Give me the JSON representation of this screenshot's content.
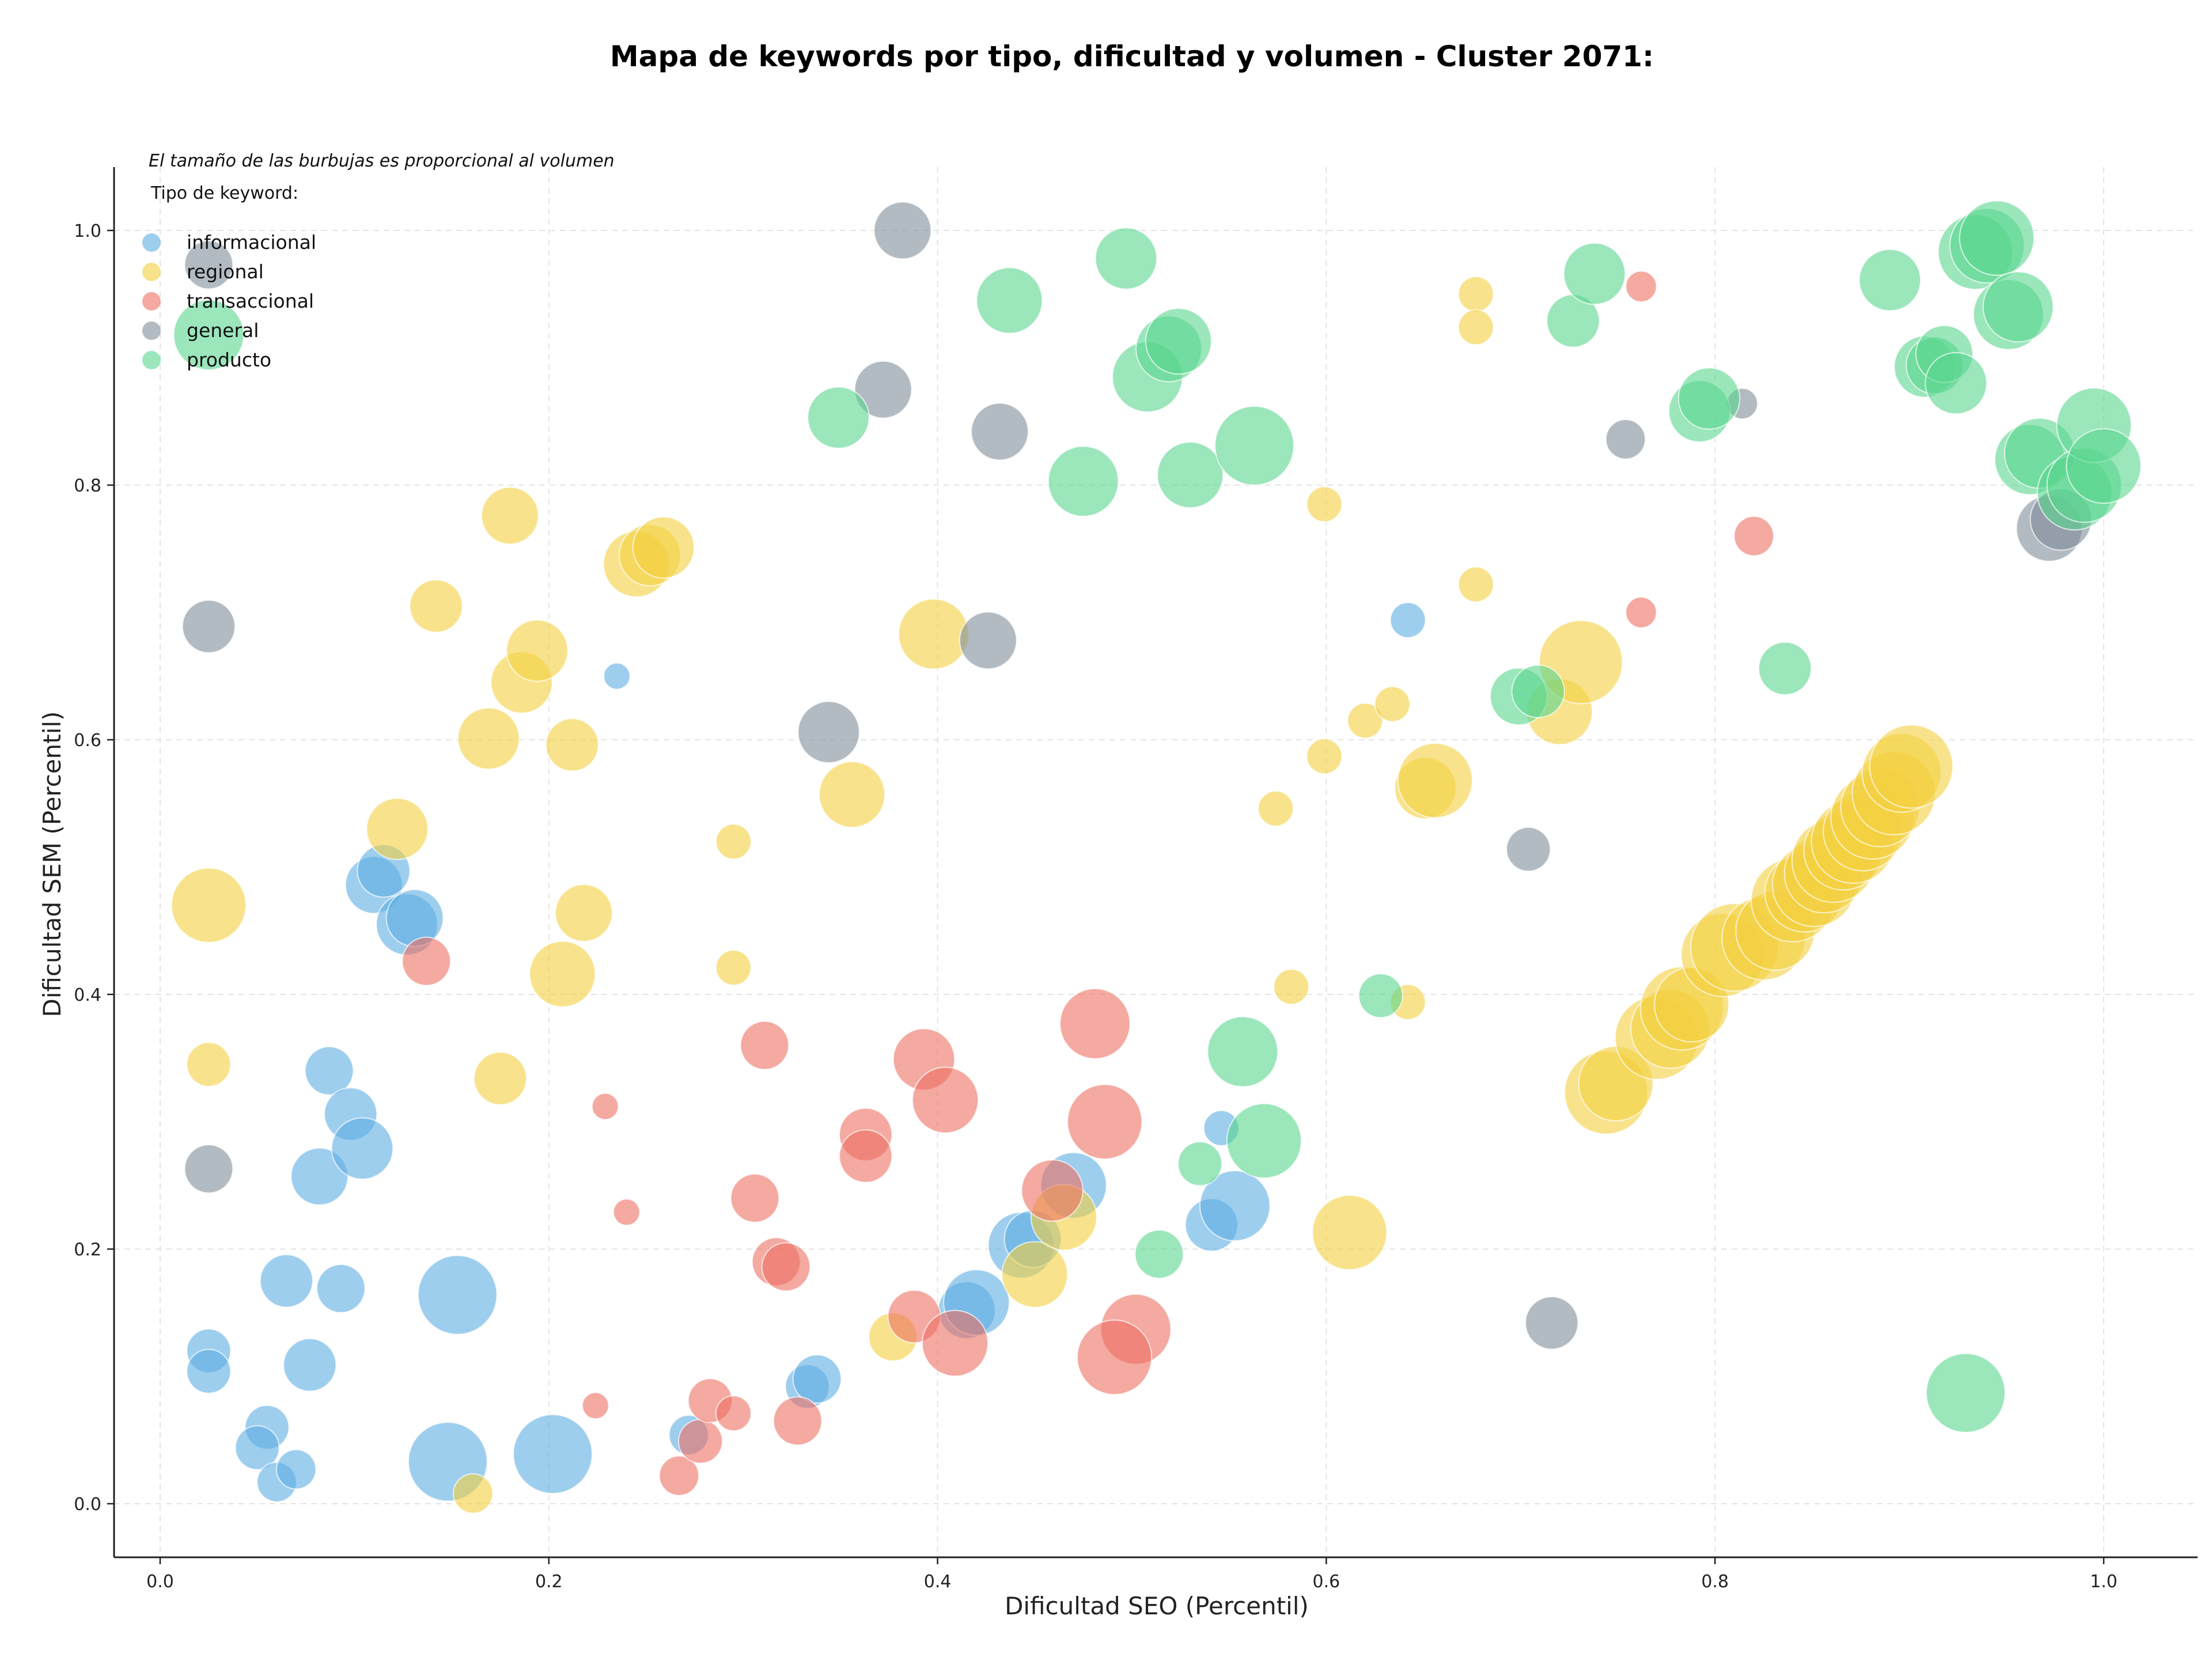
{
  "chart_data": {
    "type": "scatter",
    "title": "Mapa de keywords por tipo, dificultad y volumen - Cluster 2071:",
    "xlabel": "Dificultad SEO (Percentil)",
    "ylabel": "Dificultad SEM (Percentil)",
    "xlim": [
      -0.04,
      1.05
    ],
    "ylim": [
      -0.04,
      1.05
    ],
    "xticks": [
      0.0,
      0.2,
      0.4,
      0.6,
      0.8,
      1.0
    ],
    "yticks": [
      0.0,
      0.2,
      0.4,
      0.6,
      0.8,
      1.0
    ],
    "xtick_labels": [
      "0.0",
      "0.2",
      "0.4",
      "0.6",
      "0.8",
      "1.0"
    ],
    "ytick_labels": [
      "0.0",
      "0.2",
      "0.4",
      "0.6",
      "0.8",
      "1.0"
    ],
    "grid": true,
    "note": "El tamaño de las burbujas es proporcional al volumen",
    "legend_title": "Tipo de keyword:",
    "legend_position": "top-left",
    "series": [
      {
        "name": "informacional",
        "color": "#5DADE2",
        "points": [
          [
            0.025,
            0.12,
            1
          ],
          [
            0.025,
            0.104,
            1
          ],
          [
            0.055,
            0.06,
            1
          ],
          [
            0.05,
            0.044,
            1
          ],
          [
            0.06,
            0.017,
            0.9
          ],
          [
            0.07,
            0.027,
            0.9
          ],
          [
            0.065,
            0.175,
            1.2
          ],
          [
            0.077,
            0.109,
            1.2
          ],
          [
            0.093,
            0.169,
            1.1
          ],
          [
            0.082,
            0.257,
            1.3
          ],
          [
            0.087,
            0.34,
            1.1
          ],
          [
            0.098,
            0.306,
            1.2
          ],
          [
            0.104,
            0.279,
            1.4
          ],
          [
            0.11,
            0.486,
            1.3
          ],
          [
            0.115,
            0.497,
            1.2
          ],
          [
            0.127,
            0.455,
            1.4
          ],
          [
            0.131,
            0.46,
            1.3
          ],
          [
            0.153,
            0.164,
            1.8
          ],
          [
            0.148,
            0.033,
            1.8
          ],
          [
            0.202,
            0.039,
            1.8
          ],
          [
            0.235,
            0.65,
            0.6
          ],
          [
            0.272,
            0.054,
            0.9
          ],
          [
            0.333,
            0.092,
            1.0
          ],
          [
            0.338,
            0.098,
            1.1
          ],
          [
            0.415,
            0.152,
            1.3
          ],
          [
            0.42,
            0.158,
            1.5
          ],
          [
            0.443,
            0.203,
            1.5
          ],
          [
            0.449,
            0.208,
            1.3
          ],
          [
            0.47,
            0.25,
            1.5
          ],
          [
            0.541,
            0.219,
            1.2
          ],
          [
            0.546,
            0.295,
            0.8
          ],
          [
            0.553,
            0.234,
            1.6
          ],
          [
            0.642,
            0.694,
            0.8
          ]
        ]
      },
      {
        "name": "regional",
        "color": "#F4D03F",
        "points": [
          [
            0.025,
            0.47,
            1.7
          ],
          [
            0.025,
            0.345,
            1.0
          ],
          [
            0.122,
            0.53,
            1.4
          ],
          [
            0.142,
            0.705,
            1.2
          ],
          [
            0.169,
            0.601,
            1.4
          ],
          [
            0.175,
            0.334,
            1.2
          ],
          [
            0.18,
            0.776,
            1.3
          ],
          [
            0.186,
            0.645,
            1.4
          ],
          [
            0.194,
            0.67,
            1.4
          ],
          [
            0.207,
            0.416,
            1.5
          ],
          [
            0.212,
            0.596,
            1.2
          ],
          [
            0.218,
            0.464,
            1.3
          ],
          [
            0.245,
            0.738,
            1.5
          ],
          [
            0.252,
            0.745,
            1.4
          ],
          [
            0.259,
            0.751,
            1.4
          ],
          [
            0.161,
            0.008,
            0.9
          ],
          [
            0.295,
            0.52,
            0.8
          ],
          [
            0.295,
            0.421,
            0.8
          ],
          [
            0.356,
            0.557,
            1.5
          ],
          [
            0.377,
            0.131,
            1.1
          ],
          [
            0.398,
            0.683,
            1.6
          ],
          [
            0.45,
            0.18,
            1.5
          ],
          [
            0.465,
            0.225,
            1.5
          ],
          [
            0.582,
            0.406,
            0.8
          ],
          [
            0.574,
            0.546,
            0.8
          ],
          [
            0.599,
            0.785,
            0.8
          ],
          [
            0.599,
            0.587,
            0.8
          ],
          [
            0.612,
            0.213,
            1.7
          ],
          [
            0.62,
            0.615,
            0.8
          ],
          [
            0.634,
            0.628,
            0.8
          ],
          [
            0.642,
            0.394,
            0.8
          ],
          [
            0.651,
            0.562,
            1.4
          ],
          [
            0.656,
            0.568,
            1.7
          ],
          [
            0.677,
            0.95,
            0.8
          ],
          [
            0.677,
            0.924,
            0.8
          ],
          [
            0.677,
            0.722,
            0.8
          ],
          [
            0.72,
            0.622,
            1.5
          ],
          [
            0.731,
            0.661,
            1.9
          ],
          [
            0.744,
            0.323,
            1.9
          ],
          [
            0.749,
            0.33,
            1.7
          ],
          [
            0.77,
            0.366,
            1.9
          ],
          [
            0.777,
            0.373,
            1.8
          ],
          [
            0.783,
            0.389,
            1.9
          ],
          [
            0.788,
            0.392,
            1.7
          ],
          [
            0.804,
            0.431,
            1.9
          ],
          [
            0.81,
            0.437,
            2.0
          ],
          [
            0.825,
            0.444,
            1.9
          ],
          [
            0.831,
            0.45,
            1.8
          ],
          [
            0.84,
            0.474,
            1.9
          ],
          [
            0.846,
            0.48,
            1.8
          ],
          [
            0.851,
            0.486,
            1.9
          ],
          [
            0.856,
            0.495,
            1.8
          ],
          [
            0.861,
            0.505,
            1.9
          ],
          [
            0.866,
            0.513,
            1.8
          ],
          [
            0.871,
            0.52,
            1.9
          ],
          [
            0.876,
            0.528,
            1.8
          ],
          [
            0.881,
            0.539,
            1.9
          ],
          [
            0.885,
            0.547,
            1.8
          ],
          [
            0.892,
            0.558,
            1.9
          ],
          [
            0.896,
            0.574,
            1.8
          ],
          [
            0.901,
            0.579,
            1.9
          ]
        ]
      },
      {
        "name": "transaccional",
        "color": "#EC7063",
        "points": [
          [
            0.137,
            0.426,
            1.1
          ],
          [
            0.229,
            0.312,
            0.6
          ],
          [
            0.224,
            0.077,
            0.6
          ],
          [
            0.24,
            0.229,
            0.6
          ],
          [
            0.267,
            0.022,
            0.9
          ],
          [
            0.278,
            0.049,
            1.0
          ],
          [
            0.283,
            0.081,
            1.0
          ],
          [
            0.295,
            0.071,
            0.8
          ],
          [
            0.306,
            0.24,
            1.1
          ],
          [
            0.311,
            0.36,
            1.1
          ],
          [
            0.317,
            0.19,
            1.1
          ],
          [
            0.322,
            0.186,
            1.1
          ],
          [
            0.328,
            0.065,
            1.1
          ],
          [
            0.363,
            0.29,
            1.2
          ],
          [
            0.363,
            0.273,
            1.2
          ],
          [
            0.388,
            0.147,
            1.2
          ],
          [
            0.393,
            0.349,
            1.4
          ],
          [
            0.404,
            0.317,
            1.5
          ],
          [
            0.409,
            0.126,
            1.5
          ],
          [
            0.459,
            0.246,
            1.4
          ],
          [
            0.481,
            0.377,
            1.6
          ],
          [
            0.486,
            0.3,
            1.7
          ],
          [
            0.502,
            0.137,
            1.6
          ],
          [
            0.491,
            0.115,
            1.7
          ],
          [
            0.762,
            0.956,
            0.7
          ],
          [
            0.762,
            0.7,
            0.7
          ],
          [
            0.82,
            0.76,
            0.9
          ]
        ]
      },
      {
        "name": "general",
        "color": "#7F8C9A",
        "points": [
          [
            0.025,
            0.973,
            1.1
          ],
          [
            0.025,
            0.689,
            1.2
          ],
          [
            0.025,
            0.263,
            1.1
          ],
          [
            0.344,
            0.606,
            1.4
          ],
          [
            0.372,
            0.875,
            1.3
          ],
          [
            0.382,
            1.0,
            1.3
          ],
          [
            0.426,
            0.678,
            1.3
          ],
          [
            0.432,
            0.842,
            1.3
          ],
          [
            0.704,
            0.514,
            1.0
          ],
          [
            0.716,
            0.142,
            1.2
          ],
          [
            0.754,
            0.836,
            0.9
          ],
          [
            0.814,
            0.864,
            0.7
          ],
          [
            0.972,
            0.766,
            1.5
          ],
          [
            0.978,
            0.773,
            1.4
          ]
        ]
      },
      {
        "name": "producto",
        "color": "#58D68D",
        "points": [
          [
            0.025,
            0.918,
            1.6
          ],
          [
            0.349,
            0.853,
            1.4
          ],
          [
            0.437,
            0.945,
            1.5
          ],
          [
            0.475,
            0.803,
            1.6
          ],
          [
            0.497,
            0.978,
            1.4
          ],
          [
            0.508,
            0.885,
            1.6
          ],
          [
            0.519,
            0.907,
            1.5
          ],
          [
            0.524,
            0.913,
            1.5
          ],
          [
            0.53,
            0.808,
            1.5
          ],
          [
            0.514,
            0.196,
            1.1
          ],
          [
            0.535,
            0.267,
            1.0
          ],
          [
            0.557,
            0.355,
            1.6
          ],
          [
            0.563,
            0.831,
            1.8
          ],
          [
            0.568,
            0.285,
            1.7
          ],
          [
            0.628,
            0.399,
            1.0
          ],
          [
            0.699,
            0.634,
            1.3
          ],
          [
            0.709,
            0.638,
            1.2
          ],
          [
            0.727,
            0.929,
            1.2
          ],
          [
            0.738,
            0.966,
            1.4
          ],
          [
            0.792,
            0.858,
            1.4
          ],
          [
            0.797,
            0.868,
            1.4
          ],
          [
            0.836,
            0.656,
            1.2
          ],
          [
            0.89,
            0.961,
            1.4
          ],
          [
            0.908,
            0.893,
            1.4
          ],
          [
            0.913,
            0.894,
            1.3
          ],
          [
            0.918,
            0.903,
            1.3
          ],
          [
            0.924,
            0.88,
            1.4
          ],
          [
            0.929,
            0.087,
            1.8
          ],
          [
            0.934,
            0.983,
            1.7
          ],
          [
            0.94,
            0.988,
            1.7
          ],
          [
            0.945,
            0.994,
            1.7
          ],
          [
            0.951,
            0.934,
            1.6
          ],
          [
            0.956,
            0.94,
            1.6
          ],
          [
            0.962,
            0.82,
            1.6
          ],
          [
            0.967,
            0.825,
            1.6
          ],
          [
            0.985,
            0.794,
            1.7
          ],
          [
            0.99,
            0.8,
            1.7
          ],
          [
            0.995,
            0.847,
            1.7
          ],
          [
            1.0,
            0.815,
            1.7
          ]
        ]
      }
    ]
  }
}
